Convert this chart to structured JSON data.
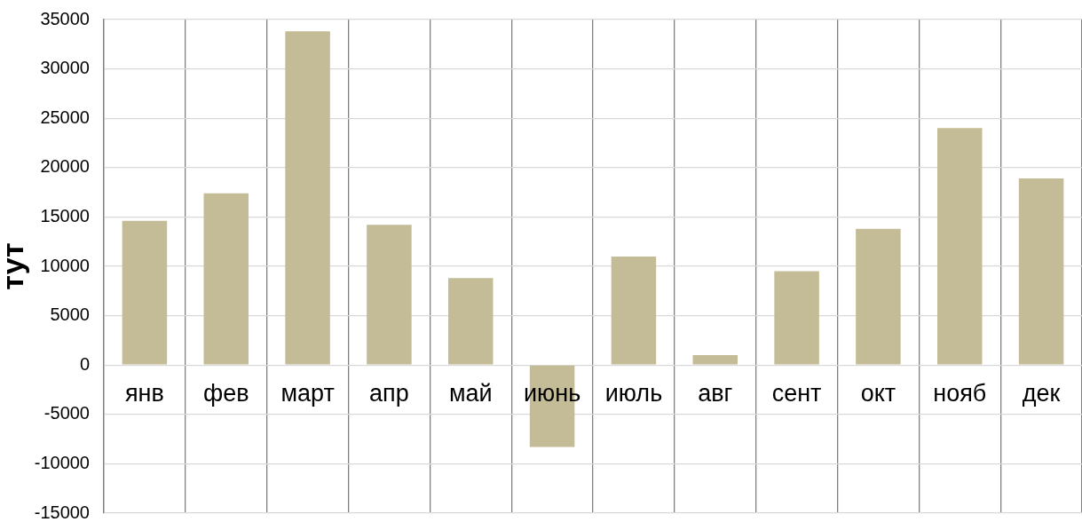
{
  "chart_data": {
    "type": "bar",
    "ylabel": "тут",
    "categories": [
      "янв",
      "фев",
      "март",
      "апр",
      "май",
      "июнь",
      "июль",
      "авг",
      "сент",
      "окт",
      "нояб",
      "дек"
    ],
    "values": [
      14600,
      17400,
      33800,
      14200,
      8800,
      -8300,
      11000,
      1000,
      9500,
      13800,
      24000,
      18900
    ],
    "color": "#c4bc96",
    "ylim": [
      -15000,
      35000
    ],
    "yticks": [
      -15000,
      -10000,
      -5000,
      0,
      5000,
      10000,
      15000,
      20000,
      25000,
      30000,
      35000
    ],
    "grid": true
  }
}
